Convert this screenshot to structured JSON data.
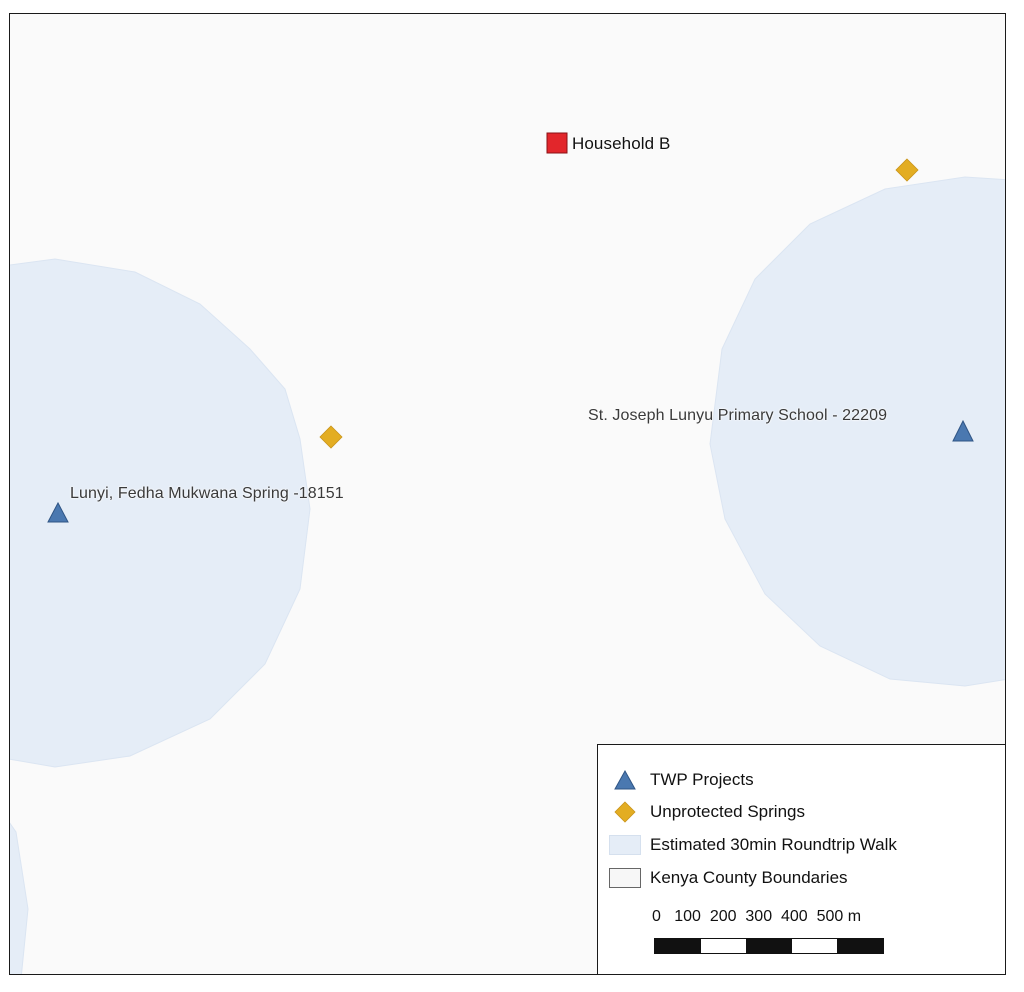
{
  "map": {
    "labels": {
      "household": "Household B",
      "project_west": "Lunyi, Fedha Mukwana Spring -18151",
      "project_east": "St. Joseph Lunyu Primary School - 22209"
    },
    "colors": {
      "background": "#fafafa",
      "walk_area": "#e5edf7",
      "twp_project": "#4a78b0",
      "unprotected_spring": "#e3ad22",
      "household": "#e2262b"
    },
    "symbols": {
      "twp_project": "triangle-icon",
      "unprotected_spring": "diamond-icon",
      "household": "square-icon"
    }
  },
  "legend": {
    "items": [
      {
        "label": "TWP Projects"
      },
      {
        "label": "Unprotected Springs"
      },
      {
        "label": "Estimated 30min Roundtrip Walk"
      },
      {
        "label": "Kenya County Boundaries"
      }
    ],
    "scale": {
      "text": "0   100  200  300  400  500 m",
      "max_value": 500,
      "units": "m"
    }
  }
}
